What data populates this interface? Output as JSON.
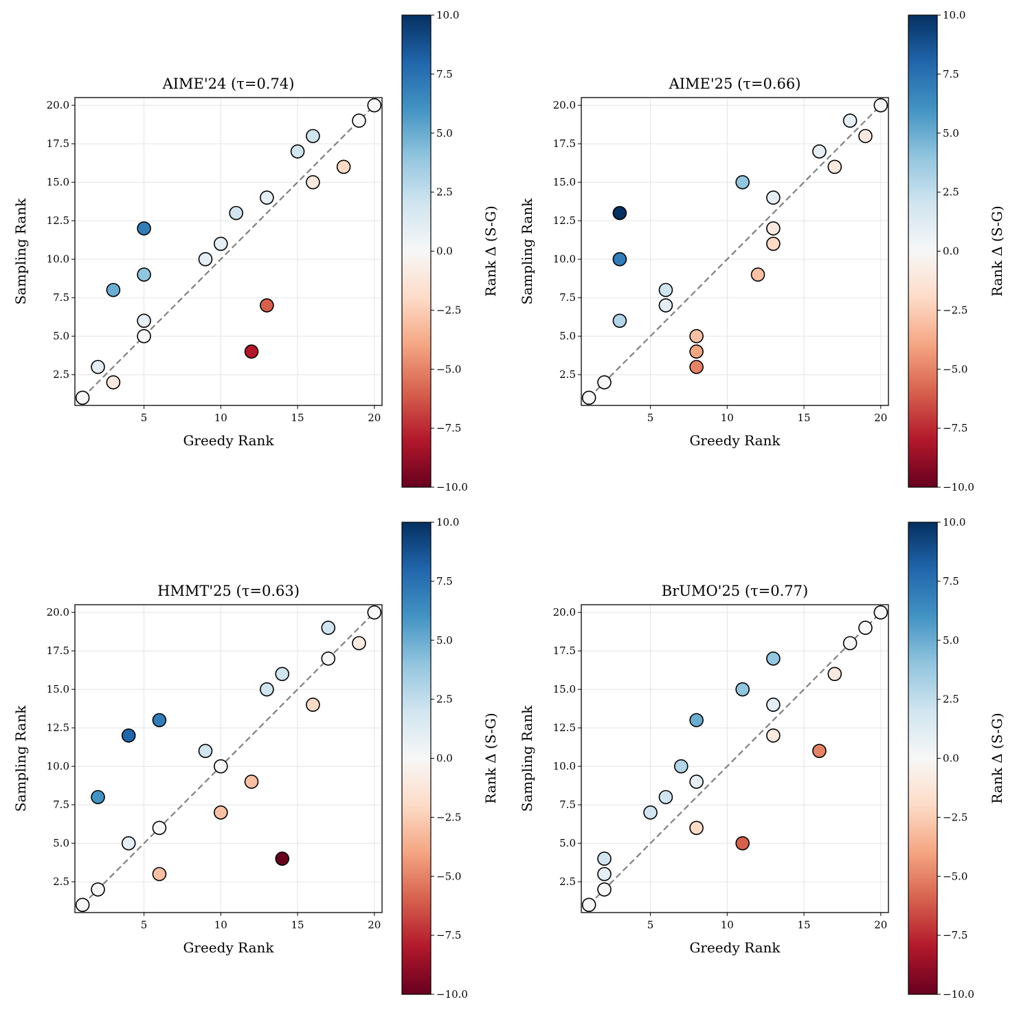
{
  "chart_data": [
    {
      "type": "scatter",
      "title": "AIME'24 (τ=0.74)",
      "xlabel": "Greedy Rank",
      "ylabel": "Sampling Rank",
      "colorbar_label": "Rank Δ (S-G)",
      "colormap": "RdBu",
      "clim": [
        -10,
        10
      ],
      "xlim": [
        0.5,
        20.5
      ],
      "ylim": [
        0.5,
        20.5
      ],
      "xticks": [
        5,
        10,
        15,
        20
      ],
      "yticks": [
        2.5,
        5.0,
        7.5,
        10.0,
        12.5,
        15.0,
        17.5,
        20.0
      ],
      "cticks": [
        -10.0,
        -7.5,
        -5.0,
        -2.5,
        0.0,
        2.5,
        5.0,
        7.5,
        10.0
      ],
      "grid": true,
      "diagonal_reference": "dashed y=x",
      "points": [
        [
          1,
          1
        ],
        [
          2,
          3
        ],
        [
          3,
          2
        ],
        [
          3,
          8
        ],
        [
          5,
          12
        ],
        [
          5,
          9
        ],
        [
          5,
          6
        ],
        [
          5,
          5
        ],
        [
          9,
          10
        ],
        [
          10,
          11
        ],
        [
          11,
          13
        ],
        [
          12,
          4
        ],
        [
          13,
          7
        ],
        [
          13,
          14
        ],
        [
          15,
          17
        ],
        [
          16,
          18
        ],
        [
          16,
          15
        ],
        [
          18,
          16
        ],
        [
          19,
          19
        ],
        [
          20,
          20
        ]
      ]
    },
    {
      "type": "scatter",
      "title": "AIME'25 (τ=0.66)",
      "xlabel": "Greedy Rank",
      "ylabel": "Sampling Rank",
      "colorbar_label": "Rank Δ (S-G)",
      "colormap": "RdBu",
      "clim": [
        -10,
        10
      ],
      "xlim": [
        0.5,
        20.5
      ],
      "ylim": [
        0.5,
        20.5
      ],
      "xticks": [
        5,
        10,
        15,
        20
      ],
      "yticks": [
        2.5,
        5.0,
        7.5,
        10.0,
        12.5,
        15.0,
        17.5,
        20.0
      ],
      "cticks": [
        -10.0,
        -7.5,
        -5.0,
        -2.5,
        0.0,
        2.5,
        5.0,
        7.5,
        10.0
      ],
      "grid": true,
      "diagonal_reference": "dashed y=x",
      "points": [
        [
          1,
          1
        ],
        [
          2,
          2
        ],
        [
          3,
          6
        ],
        [
          3,
          10
        ],
        [
          3,
          13
        ],
        [
          6,
          7
        ],
        [
          6,
          8
        ],
        [
          8,
          3
        ],
        [
          8,
          4
        ],
        [
          8,
          5
        ],
        [
          11,
          15
        ],
        [
          12,
          9
        ],
        [
          13,
          11
        ],
        [
          13,
          12
        ],
        [
          13,
          14
        ],
        [
          16,
          17
        ],
        [
          17,
          16
        ],
        [
          18,
          19
        ],
        [
          19,
          18
        ],
        [
          20,
          20
        ]
      ]
    },
    {
      "type": "scatter",
      "title": "HMMT'25 (τ=0.63)",
      "xlabel": "Greedy Rank",
      "ylabel": "Sampling Rank",
      "colorbar_label": "Rank Δ (S-G)",
      "colormap": "RdBu",
      "clim": [
        -10,
        10
      ],
      "xlim": [
        0.5,
        20.5
      ],
      "ylim": [
        0.5,
        20.5
      ],
      "xticks": [
        5,
        10,
        15,
        20
      ],
      "yticks": [
        2.5,
        5.0,
        7.5,
        10.0,
        12.5,
        15.0,
        17.5,
        20.0
      ],
      "cticks": [
        -10.0,
        -7.5,
        -5.0,
        -2.5,
        0.0,
        2.5,
        5.0,
        7.5,
        10.0
      ],
      "grid": true,
      "diagonal_reference": "dashed y=x",
      "points": [
        [
          1,
          1
        ],
        [
          2,
          2
        ],
        [
          2,
          8
        ],
        [
          4,
          5
        ],
        [
          4,
          12
        ],
        [
          6,
          3
        ],
        [
          6,
          6
        ],
        [
          6,
          13
        ],
        [
          9,
          11
        ],
        [
          10,
          10
        ],
        [
          10,
          7
        ],
        [
          12,
          9
        ],
        [
          13,
          15
        ],
        [
          14,
          16
        ],
        [
          14,
          4
        ],
        [
          16,
          14
        ],
        [
          17,
          17
        ],
        [
          17,
          19
        ],
        [
          19,
          18
        ],
        [
          20,
          20
        ]
      ]
    },
    {
      "type": "scatter",
      "title": "BrUMO'25 (τ=0.77)",
      "xlabel": "Greedy Rank",
      "ylabel": "Sampling Rank",
      "colorbar_label": "Rank Δ (S-G)",
      "colormap": "RdBu",
      "clim": [
        -10,
        10
      ],
      "xlim": [
        0.5,
        20.5
      ],
      "ylim": [
        0.5,
        20.5
      ],
      "xticks": [
        5,
        10,
        15,
        20
      ],
      "yticks": [
        2.5,
        5.0,
        7.5,
        10.0,
        12.5,
        15.0,
        17.5,
        20.0
      ],
      "cticks": [
        -10.0,
        -7.5,
        -5.0,
        -2.5,
        0.0,
        2.5,
        5.0,
        7.5,
        10.0
      ],
      "grid": true,
      "diagonal_reference": "dashed y=x",
      "points": [
        [
          1,
          1
        ],
        [
          2,
          2
        ],
        [
          2,
          3
        ],
        [
          2,
          4
        ],
        [
          5,
          7
        ],
        [
          6,
          8
        ],
        [
          7,
          10
        ],
        [
          8,
          9
        ],
        [
          8,
          13
        ],
        [
          8,
          6
        ],
        [
          11,
          15
        ],
        [
          11,
          5
        ],
        [
          13,
          17
        ],
        [
          13,
          14
        ],
        [
          13,
          12
        ],
        [
          16,
          11
        ],
        [
          17,
          16
        ],
        [
          18,
          18
        ],
        [
          19,
          19
        ],
        [
          20,
          20
        ]
      ]
    }
  ]
}
